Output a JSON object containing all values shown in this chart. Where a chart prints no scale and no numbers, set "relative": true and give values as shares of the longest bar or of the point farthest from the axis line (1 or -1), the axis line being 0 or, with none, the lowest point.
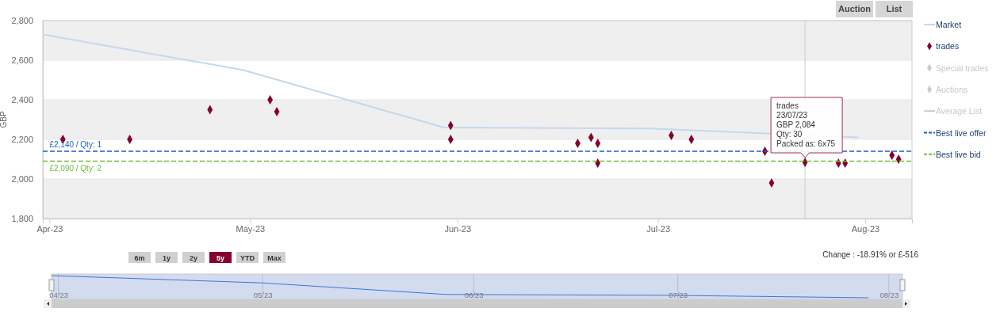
{
  "chart_data": [
    {
      "type": "scatter",
      "ylabel": "GBP",
      "xlim": [
        "2023-03-31",
        "2023-08-08"
      ],
      "xticks": [
        {
          "value": "2023-04-01",
          "label": "Apr-23"
        },
        {
          "value": "2023-05-01",
          "label": "May-23"
        },
        {
          "value": "2023-06-01",
          "label": "Jun-23"
        },
        {
          "value": "2023-07-01",
          "label": "Jul-23"
        },
        {
          "value": "2023-08-01",
          "label": "Aug-23"
        }
      ],
      "ylim": [
        1800,
        2800
      ],
      "yticks": [
        {
          "value": 1800,
          "label": "1,800"
        },
        {
          "value": 2000,
          "label": "2,000"
        },
        {
          "value": 2200,
          "label": "2,200"
        },
        {
          "value": 2400,
          "label": "2,400"
        },
        {
          "value": 2600,
          "label": "2,600"
        },
        {
          "value": 2800,
          "label": "2,800"
        }
      ],
      "grid": "y",
      "legend": "right",
      "series": [
        {
          "name": "Market",
          "type": "line",
          "color": "#c5d8ee",
          "x": [
            "2023-03-31",
            "2023-04-30",
            "2023-05-30",
            "2023-06-30",
            "2023-07-31"
          ],
          "values": [
            2730,
            2550,
            2260,
            2255,
            2210
          ]
        },
        {
          "name": "trades",
          "marker": "diamond",
          "color": "#85002b",
          "x": [
            "2023-04-03",
            "2023-04-13",
            "2023-04-25",
            "2023-05-04",
            "2023-05-05",
            "2023-05-31",
            "2023-05-31",
            "2023-06-19",
            "2023-06-21",
            "2023-06-22",
            "2023-06-22",
            "2023-07-03",
            "2023-07-06",
            "2023-07-17",
            "2023-07-18",
            "2023-07-23",
            "2023-07-28",
            "2023-07-29",
            "2023-08-05",
            "2023-08-06"
          ],
          "values": [
            2200,
            2200,
            2350,
            2400,
            2340,
            2270,
            2200,
            2180,
            2210,
            2180,
            2080,
            2220,
            2200,
            2140,
            1980,
            2084,
            2080,
            2080,
            2120,
            2100
          ]
        },
        {
          "name": "Special trades",
          "type": "scatter",
          "marker": "diamond",
          "color": "#cccccc"
        },
        {
          "name": "Auctions",
          "type": "scatter",
          "marker": "diamond",
          "color": "#cccccc"
        },
        {
          "name": "Average List",
          "type": "line",
          "color": "#cccccc"
        },
        {
          "name": "Best live offer",
          "type": "line",
          "color": "#1a62c0",
          "line_style": "dashed",
          "x": [
            "2023-03-31",
            "2023-08-08"
          ],
          "values": [
            2140,
            2140
          ]
        },
        {
          "name": "Best live bid",
          "type": "line",
          "color": "#6fbf3c",
          "line_style": "dashed",
          "x": [
            "2023-03-31",
            "2023-08-08"
          ],
          "values": [
            2090,
            2090
          ]
        }
      ],
      "ref_lines": [
        {
          "axis": "x",
          "value": "2023-07-23",
          "color": "#cccccc"
        }
      ],
      "annotations": [
        {
          "text": "trades\n23/07/23\nGBP 2,084\nQty: 30\nPacked as: 6x75",
          "x": "2023-07-23",
          "y": 2084
        },
        {
          "text": "£2,140 / Qty: 1",
          "x": "2023-04-01",
          "y": 2140
        },
        {
          "text": "£2,090 / Qty: 2",
          "x": "2023-04-01",
          "y": 2090
        },
        "Auction",
        "List",
        "6m",
        "1y",
        "2y",
        "5y",
        "YTD",
        "Max",
        "Change : -18.91% or £-516"
      ]
    },
    {
      "type": "line",
      "relative": true,
      "tick_labels": "x",
      "grid": "x",
      "xlim": [
        "2023-03-31",
        "2023-08-03"
      ],
      "xticks": [
        {
          "value": "2023-04-01",
          "label": "04/23"
        },
        {
          "value": "2023-05-01",
          "label": "05/23"
        },
        {
          "value": "2023-06-01",
          "label": "06/23"
        },
        {
          "value": "2023-07-01",
          "label": "07/23"
        },
        {
          "value": "2023-08-01",
          "label": "08/23"
        }
      ],
      "series": [
        {
          "color": "#3a78d8",
          "x": [
            "2023-03-31",
            "2023-05-01",
            "2023-05-28",
            "2023-06-30",
            "2023-07-29"
          ],
          "values": [
            1,
            0.67,
            0.15,
            0.11,
            0
          ]
        }
      ]
    }
  ]
}
